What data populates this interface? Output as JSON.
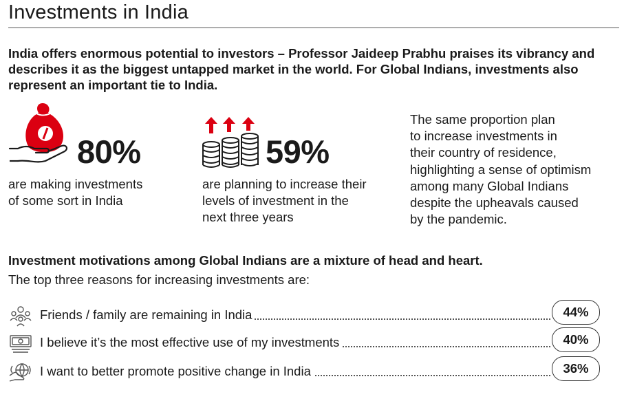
{
  "page": {
    "title": "Investments in India",
    "intro": "India offers enormous potential to investors – Professor Jaideep Prabhu praises its vibrancy and describes it as the biggest untapped market in the world. For Global Indians, investments also represent an important tie to India."
  },
  "stats": [
    {
      "value": "80%",
      "lines": [
        "are making investments",
        "of some sort in India"
      ],
      "icon": "money-bag-hand-icon"
    },
    {
      "value": "59%",
      "lines": [
        "are planning to increase their",
        "levels of investment in the",
        "next three years"
      ],
      "icon": "rising-coins-icon"
    }
  ],
  "side_note": [
    "The same proportion plan",
    "to increase investments in",
    "their country of residence,",
    "highlighting a sense of optimism",
    "among many Global Indians",
    "despite the upheavals caused",
    "by the pandemic."
  ],
  "motivations": {
    "heading": "Investment motivations among Global Indians are a mixture of head and heart.",
    "subheading": "The top three reasons for increasing investments are:",
    "items": [
      {
        "label": "Friends / family are remaining in India",
        "percent": "44%",
        "icon": "people-icon"
      },
      {
        "label": "I believe it’s the most effective use of my investments",
        "percent": "40%",
        "icon": "banknote-icon"
      },
      {
        "label": "I want to better promote positive change in India",
        "percent": "36%",
        "icon": "globe-hand-icon"
      }
    ]
  },
  "colors": {
    "accent_red": "#db0011",
    "text": "#1a1a1a"
  }
}
